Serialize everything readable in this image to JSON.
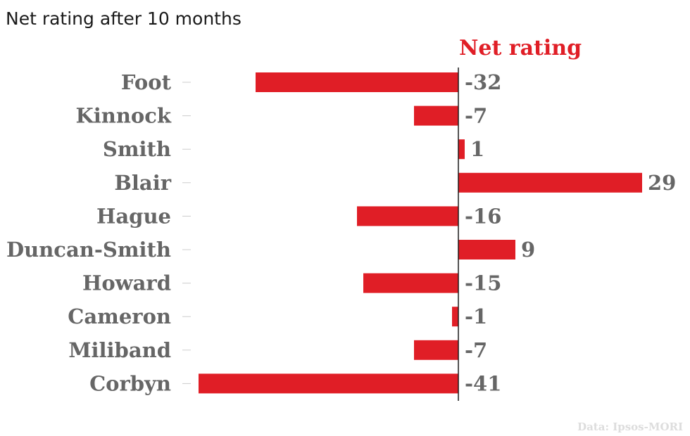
{
  "chart_data": {
    "type": "bar",
    "orientation": "horizontal",
    "title": "Net rating after 10 months",
    "series_title": "Net rating",
    "categories": [
      "Foot",
      "Kinnock",
      "Smith",
      "Blair",
      "Hague",
      "Duncan-Smith",
      "Howard",
      "Cameron",
      "Miliband",
      "Corbyn"
    ],
    "values": [
      -32,
      -7,
      1,
      29,
      -16,
      9,
      -15,
      -1,
      -7,
      -41
    ],
    "value_labels": [
      "-32",
      "-7",
      "1",
      "29",
      "-16",
      "9",
      "-15",
      "-1",
      "-7",
      "-41"
    ],
    "xlim": [
      -41,
      29
    ],
    "grid": false,
    "source": "Data: Ipsos-MORI",
    "colors": {
      "bar": "#e01e26",
      "labels": "#666666",
      "series_title": "#e01e26",
      "axis": "#1a1a1a",
      "tick": "#cccccc",
      "source": "#dddddd"
    }
  }
}
